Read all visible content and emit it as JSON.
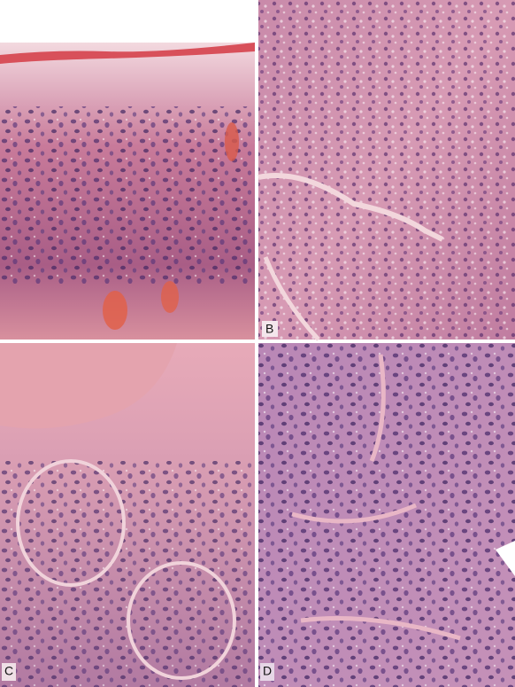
{
  "panel_labels": [
    "B",
    "C",
    "D"
  ]
}
